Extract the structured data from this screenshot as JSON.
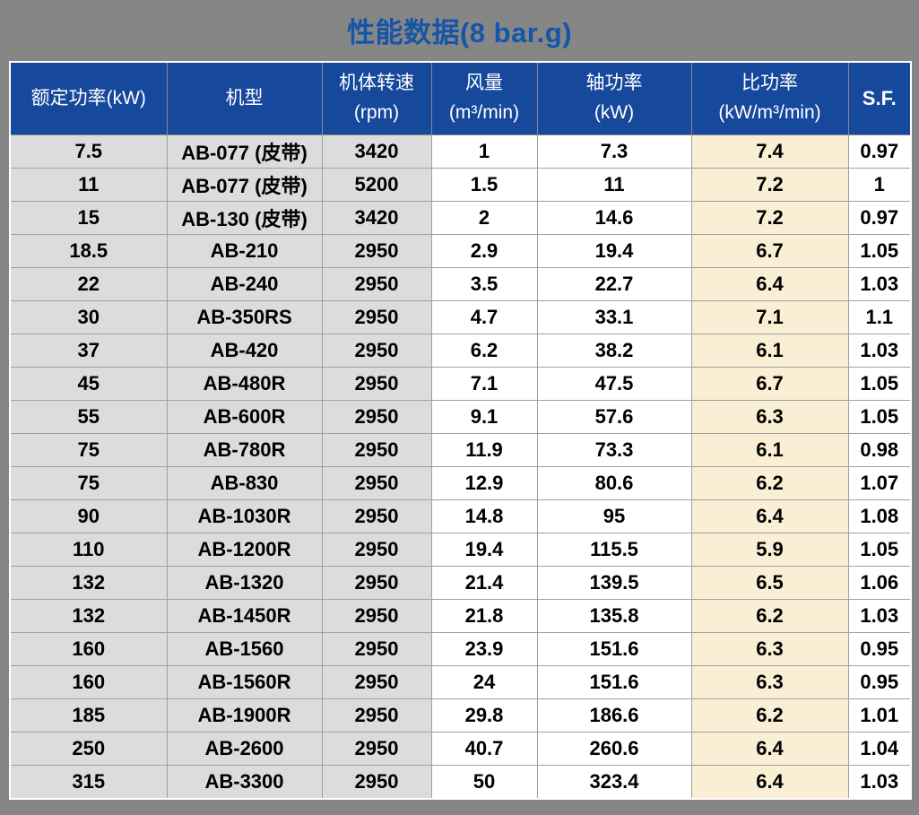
{
  "title": {
    "text": "性能数据(8 bar.g)"
  },
  "colors": {
    "page_background": "#868686",
    "title_text": "#1456A8",
    "header_background": "#16489C",
    "header_text": "#FFFFFF",
    "cell_gray": "#DCDCDC",
    "cell_white": "#FFFFFF",
    "cell_cream": "#FAEFD5",
    "grid_line": "#A0A0A0",
    "outer_border": "#FFFFFF"
  },
  "table": {
    "header": {
      "rated_power": {
        "line1": "额定功率(kW)"
      },
      "model": {
        "line1": "机型"
      },
      "speed": {
        "line1": "机体转速",
        "line2": "(rpm)"
      },
      "air_flow": {
        "line1": "风量",
        "line2": "(m³/min)"
      },
      "shaft_power": {
        "line1": "轴功率",
        "line2": "(kW)"
      },
      "specific_power": {
        "line1": "比功率",
        "line2": "(kW/m³/min)"
      },
      "service_factor": {
        "line1": "S.F."
      }
    },
    "rows": [
      [
        "7.5",
        "AB-077 (皮带)",
        "3420",
        "1",
        "7.3",
        "7.4",
        "0.97"
      ],
      [
        "11",
        "AB-077 (皮带)",
        "5200",
        "1.5",
        "11",
        "7.2",
        "1"
      ],
      [
        "15",
        "AB-130 (皮带)",
        "3420",
        "2",
        "14.6",
        "7.2",
        "0.97"
      ],
      [
        "18.5",
        "AB-210",
        "2950",
        "2.9",
        "19.4",
        "6.7",
        "1.05"
      ],
      [
        "22",
        "AB-240",
        "2950",
        "3.5",
        "22.7",
        "6.4",
        "1.03"
      ],
      [
        "30",
        "AB-350RS",
        "2950",
        "4.7",
        "33.1",
        "7.1",
        "1.1"
      ],
      [
        "37",
        "AB-420",
        "2950",
        "6.2",
        "38.2",
        "6.1",
        "1.03"
      ],
      [
        "45",
        "AB-480R",
        "2950",
        "7.1",
        "47.5",
        "6.7",
        "1.05"
      ],
      [
        "55",
        "AB-600R",
        "2950",
        "9.1",
        "57.6",
        "6.3",
        "1.05"
      ],
      [
        "75",
        "AB-780R",
        "2950",
        "11.9",
        "73.3",
        "6.1",
        "0.98"
      ],
      [
        "75",
        "AB-830",
        "2950",
        "12.9",
        "80.6",
        "6.2",
        "1.07"
      ],
      [
        "90",
        "AB-1030R",
        "2950",
        "14.8",
        "95",
        "6.4",
        "1.08"
      ],
      [
        "110",
        "AB-1200R",
        "2950",
        "19.4",
        "115.5",
        "5.9",
        "1.05"
      ],
      [
        "132",
        "AB-1320",
        "2950",
        "21.4",
        "139.5",
        "6.5",
        "1.06"
      ],
      [
        "132",
        "AB-1450R",
        "2950",
        "21.8",
        "135.8",
        "6.2",
        "1.03"
      ],
      [
        "160",
        "AB-1560",
        "2950",
        "23.9",
        "151.6",
        "6.3",
        "0.95"
      ],
      [
        "160",
        "AB-1560R",
        "2950",
        "24",
        "151.6",
        "6.3",
        "0.95"
      ],
      [
        "185",
        "AB-1900R",
        "2950",
        "29.8",
        "186.6",
        "6.2",
        "1.01"
      ],
      [
        "250",
        "AB-2600",
        "2950",
        "40.7",
        "260.6",
        "6.4",
        "1.04"
      ],
      [
        "315",
        "AB-3300",
        "2950",
        "50",
        "323.4",
        "6.4",
        "1.03"
      ]
    ]
  }
}
